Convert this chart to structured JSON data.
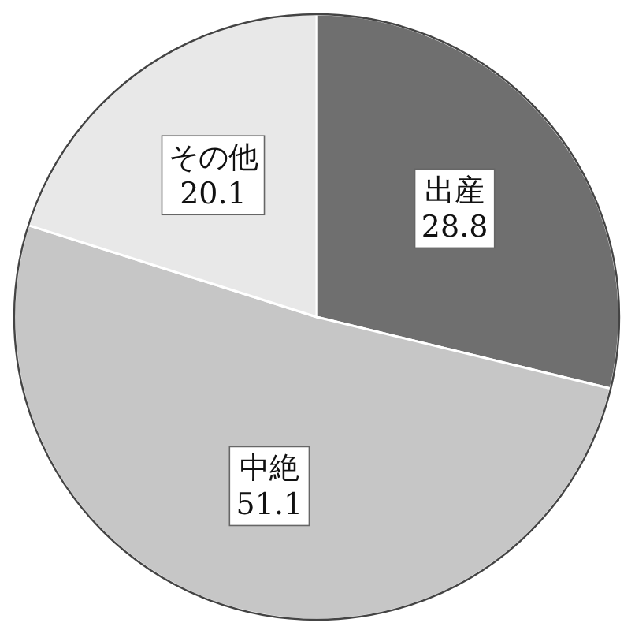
{
  "chart_data": {
    "type": "pie",
    "categories": [
      "出産",
      "中絶",
      "その他"
    ],
    "values": [
      28.8,
      51.1,
      20.1
    ],
    "colors": [
      "#6f6f6f",
      "#c6c6c6",
      "#e8e8e8"
    ],
    "data_labels": true
  }
}
